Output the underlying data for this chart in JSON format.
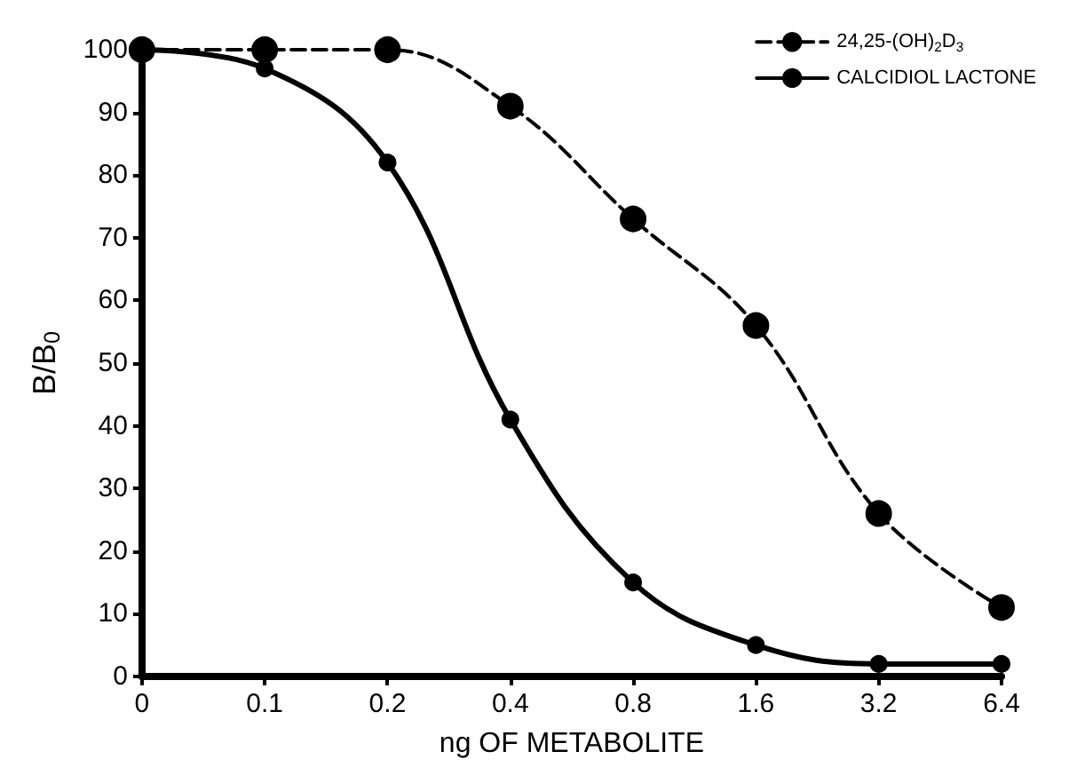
{
  "chart_data": {
    "type": "line",
    "xlabel": "ng OF METABOLITE",
    "ylabel": "B/B$_{0}$",
    "categories": [
      "0",
      "0.1",
      "0.2",
      "0.4",
      "0.8",
      "1.6",
      "3.2",
      "6.4"
    ],
    "series": [
      {
        "name": "24,25-(OH)$_{2}$D$_{3}$",
        "color": "#000000",
        "line_style": "dashed",
        "values": [
          100,
          100,
          100,
          91,
          73,
          56,
          26,
          11
        ]
      },
      {
        "name": "CALCIDIOL LACTONE",
        "color": "#000000",
        "line_style": "solid",
        "values": [
          100,
          97,
          82,
          41,
          15,
          5,
          2,
          2
        ]
      }
    ],
    "ylim": [
      0,
      100
    ],
    "yticks": [
      0,
      10,
      20,
      30,
      40,
      50,
      60,
      70,
      80,
      90,
      100
    ],
    "grid": false,
    "legend": "top right",
    "marker": "circle"
  }
}
